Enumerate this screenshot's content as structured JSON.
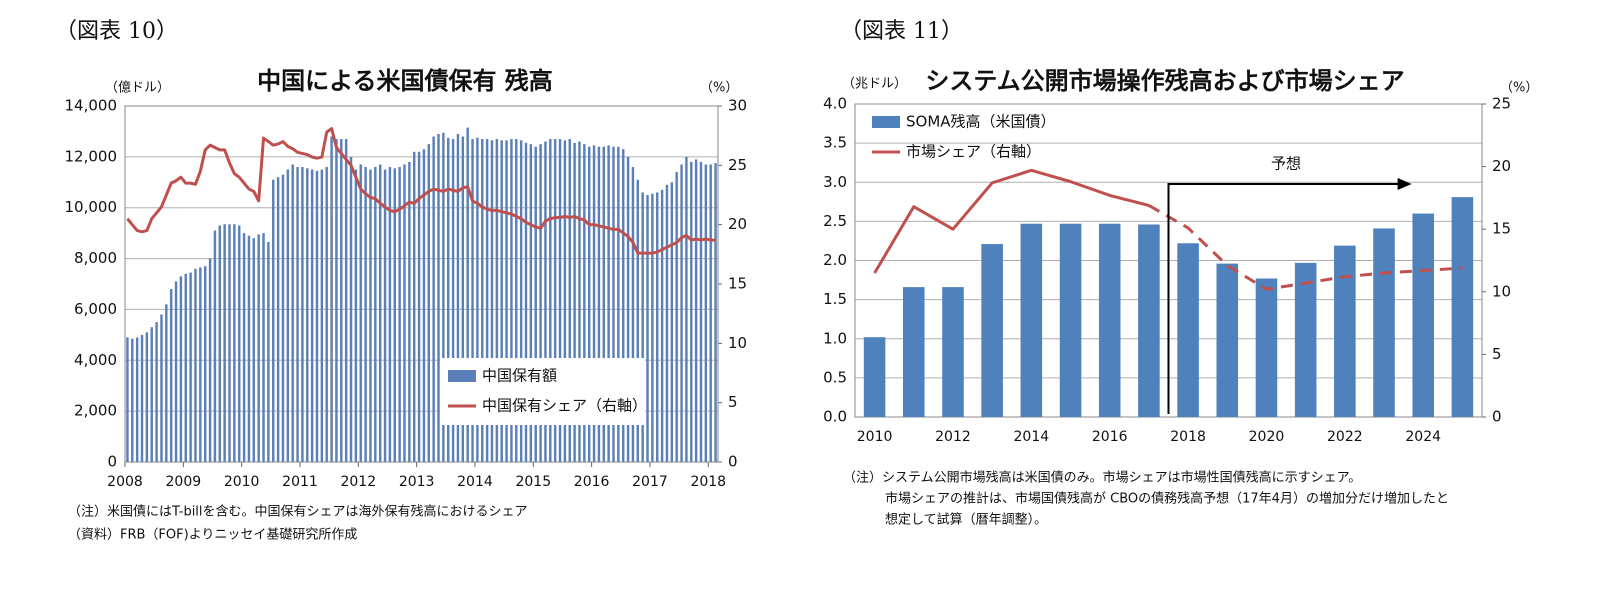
{
  "chart_data": [
    {
      "type": "combo",
      "figure_label": "（図表 10）",
      "title": "中国による米国債保有 残高",
      "y_unit": "（億ドル）",
      "y2_unit": "（%）",
      "categories": [
        "2008",
        null,
        null,
        null,
        null,
        null,
        null,
        null,
        null,
        null,
        null,
        null,
        "2009",
        null,
        null,
        null,
        null,
        null,
        null,
        null,
        null,
        null,
        null,
        null,
        "2010",
        null,
        null,
        null,
        null,
        null,
        null,
        null,
        null,
        null,
        null,
        null,
        "2011",
        null,
        null,
        null,
        null,
        null,
        null,
        null,
        null,
        null,
        null,
        null,
        "2012",
        null,
        null,
        null,
        null,
        null,
        null,
        null,
        null,
        null,
        null,
        null,
        "2013",
        null,
        null,
        null,
        null,
        null,
        null,
        null,
        null,
        null,
        null,
        null,
        "2014",
        null,
        null,
        null,
        null,
        null,
        null,
        null,
        null,
        null,
        null,
        null,
        "2015",
        null,
        null,
        null,
        null,
        null,
        null,
        null,
        null,
        null,
        null,
        null,
        "2016",
        null,
        null,
        null,
        null,
        null,
        null,
        null,
        null,
        null,
        null,
        null,
        "2017",
        null,
        null,
        null,
        null,
        null,
        null,
        null,
        null,
        null,
        null,
        null,
        "2018",
        null
      ],
      "series": [
        {
          "name": "中国保有額",
          "type": "bar",
          "color": "#5b7fb8",
          "values": [
            4900,
            4850,
            4900,
            5000,
            5100,
            5300,
            5500,
            5800,
            6200,
            6800,
            7100,
            7300,
            7400,
            7450,
            7600,
            7650,
            7700,
            8000,
            9100,
            9300,
            9350,
            9350,
            9350,
            9300,
            9000,
            8900,
            8800,
            8950,
            9000,
            8650,
            11100,
            11200,
            11300,
            11500,
            11700,
            11600,
            11600,
            11550,
            11500,
            11450,
            11500,
            11600,
            12800,
            12700,
            12700,
            12700,
            12000,
            11500,
            11700,
            11600,
            11500,
            11600,
            11700,
            11500,
            11600,
            11550,
            11600,
            11700,
            11800,
            12200,
            12200,
            12300,
            12500,
            12800,
            12900,
            12950,
            12750,
            12700,
            12900,
            12800,
            13150,
            12700,
            12750,
            12700,
            12700,
            12650,
            12700,
            12650,
            12650,
            12700,
            12700,
            12650,
            12550,
            12500,
            12400,
            12500,
            12600,
            12700,
            12700,
            12700,
            12650,
            12700,
            12550,
            12600,
            12500,
            12400,
            12450,
            12400,
            12400,
            12450,
            12400,
            12400,
            12300,
            12000,
            11600,
            11100,
            10600,
            10500,
            10550,
            10600,
            10700,
            10900,
            11000,
            11400,
            11700,
            12000,
            11800,
            11900,
            11800,
            11700,
            11700,
            11750
          ]
        },
        {
          "name": "中国保有シェア（右軸）",
          "type": "line",
          "axis": "y2",
          "color": "#c0504d",
          "values": [
            20.5,
            20,
            19.5,
            19.4,
            19.5,
            20.5,
            21,
            21.5,
            22.5,
            23.5,
            23.7,
            24,
            23.5,
            23.5,
            23.4,
            24.5,
            26.3,
            26.7,
            26.5,
            26.3,
            26.3,
            25.2,
            24.3,
            24,
            23.5,
            23,
            22.8,
            22,
            27.3,
            27,
            26.7,
            26.8,
            27,
            26.6,
            26.4,
            26.1,
            26,
            25.9,
            25.7,
            25.6,
            25.7,
            27.8,
            28.1,
            26.5,
            26,
            25.5,
            25,
            24,
            23,
            22.6,
            22.3,
            22.2,
            21.8,
            21.5,
            21.2,
            21.1,
            21.3,
            21.6,
            21.9,
            21.8,
            22.2,
            22.5,
            22.8,
            23,
            22.9,
            22.8,
            23,
            22.9,
            22.8,
            23.1,
            23.2,
            22,
            21.8,
            21.5,
            21.3,
            21.2,
            21.2,
            21.1,
            21,
            20.9,
            20.7,
            20.5,
            20.2,
            20,
            19.8,
            19.7,
            20.3,
            20.5,
            20.6,
            20.6,
            20.7,
            20.6,
            20.7,
            20.5,
            20.4,
            20,
            20,
            19.9,
            19.8,
            19.7,
            19.6,
            19.6,
            19.3,
            19,
            18.5,
            17.6,
            17.6,
            17.6,
            17.6,
            17.7,
            17.9,
            18.1,
            18.3,
            18.5,
            18.9,
            19.1,
            18.7,
            18.8,
            18.7,
            18.8,
            18.7,
            18.7
          ]
        }
      ],
      "ylim": [
        0,
        14000
      ],
      "yticks": [
        0,
        {
          "value": 2000,
          "label": "2,000"
        },
        {
          "value": 4000,
          "label": "4,000"
        },
        {
          "value": 6000,
          "label": "6,000"
        },
        {
          "value": 8000,
          "label": "8,000"
        },
        {
          "value": 10000,
          "label": "10,000"
        },
        {
          "value": 12000,
          "label": "12,000"
        },
        {
          "value": 14000,
          "label": "14,000"
        }
      ],
      "y2lim": [
        0,
        30
      ],
      "y2ticks": [
        0,
        5,
        10,
        15,
        20,
        25,
        30
      ],
      "grid": true,
      "legend": "lower right",
      "notes": [
        "（注）米国債にはT-billを含む。中国保有シェアは海外保有残高におけるシェア",
        "（資料）FRB（FOF)よりニッセイ基礎研究所作成"
      ]
    },
    {
      "type": "combo",
      "figure_label": "（図表 11）",
      "title": "システム公開市場操作残高および市場シェア",
      "y_unit": "（兆ドル）",
      "y2_unit": "（%）",
      "categories": [
        "2010",
        null,
        "2012",
        null,
        "2014",
        null,
        "2016",
        null,
        "2018",
        null,
        "2020",
        null,
        "2022",
        null,
        "2024",
        null
      ],
      "series": [
        {
          "name": "SOMA残高（米国債）",
          "type": "bar",
          "color": "#4f81bd",
          "values": [
            1.02,
            1.66,
            1.66,
            2.21,
            2.47,
            2.47,
            2.47,
            2.46,
            2.22,
            1.96,
            1.77,
            1.97,
            2.19,
            2.41,
            2.6,
            2.81
          ]
        },
        {
          "name": "市場シェア（右軸）",
          "type": "line",
          "axis": "y2",
          "color": "#c0504d",
          "values": [
            11.5,
            16.8,
            15,
            18.7,
            19.7,
            18.8,
            17.7,
            16.9,
            15.1,
            12.1,
            10.2,
            10.7,
            11.2,
            11.5,
            11.7,
            11.9
          ]
        }
      ],
      "forecast": {
        "label": "予想",
        "start": 7
      },
      "ylim": [
        0,
        4
      ],
      "yticks": [
        {
          "value": 0,
          "label": "0.0"
        },
        {
          "value": 0.5,
          "label": "0.5"
        },
        {
          "value": 1,
          "label": "1.0"
        },
        {
          "value": 1.5,
          "label": "1.5"
        },
        {
          "value": 2,
          "label": "2.0"
        },
        {
          "value": 2.5,
          "label": "2.5"
        },
        {
          "value": 3,
          "label": "3.0"
        },
        {
          "value": 3.5,
          "label": "3.5"
        },
        {
          "value": 4,
          "label": "4.0"
        }
      ],
      "y2lim": [
        0,
        25
      ],
      "y2ticks": [
        0,
        5,
        10,
        15,
        20,
        25
      ],
      "grid": true,
      "legend": "upper left",
      "notes": [
        "（注）システム公開市場残高は米国債のみ。市場シェアは市場性国債残高に示すシェア。",
        "市場シェアの推計は、市場国債残高が CBOの債務残高予想（17年4月）の増加分だけ増加したと",
        "想定して試算（暦年調整）。"
      ]
    }
  ]
}
